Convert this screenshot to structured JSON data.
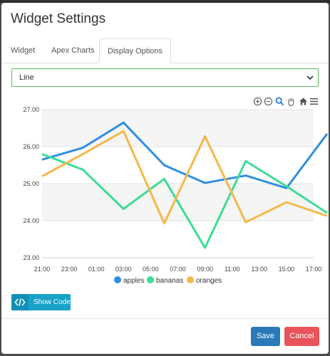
{
  "modal": {
    "title": "Widget Settings",
    "tabs": [
      {
        "label": "Widget",
        "active": false
      },
      {
        "label": "Apex Charts",
        "active": false
      },
      {
        "label": "Display Options",
        "active": true
      }
    ],
    "chart_type_select": {
      "value": "Line"
    },
    "toolbar_icons": [
      "zoom-in-icon",
      "zoom-out-icon",
      "zoom-icon",
      "pan-hand-icon",
      "home-icon",
      "menu-icon"
    ],
    "show_code_label": "Show Code",
    "save_label": "Save",
    "cancel_label": "Cancel"
  },
  "colors": {
    "apples": "#2f8fe0",
    "bananas": "#3ddc97",
    "oranges": "#f5b84a",
    "select_border": "#5cb85c",
    "show_code": "#17a2c8",
    "save": "#2b79b9",
    "cancel": "#e9545a"
  },
  "chart_data": {
    "type": "line",
    "categories": [
      "21:00",
      "23:00",
      "01:00",
      "03:00",
      "05:00",
      "07:00",
      "09:00",
      "11:00",
      "13:00",
      "15:00",
      "17:00"
    ],
    "ylim": [
      23.0,
      27.0
    ],
    "yticks": [
      "27.00",
      "26.00",
      "25.00",
      "24.00",
      "23.00"
    ],
    "grid": true,
    "legend_position": "bottom",
    "series": [
      {
        "name": "apples",
        "x": [
          0,
          1.5,
          3,
          4.5,
          6,
          7.5,
          9,
          10.5
        ],
        "values": [
          25.65,
          25.97,
          26.65,
          25.5,
          25.02,
          25.22,
          24.88,
          26.35
        ]
      },
      {
        "name": "bananas",
        "x": [
          0,
          1.5,
          3,
          4.5,
          6,
          7.5,
          9,
          10.5
        ],
        "values": [
          25.8,
          25.38,
          24.32,
          25.13,
          23.27,
          25.61,
          24.93,
          24.21
        ]
      },
      {
        "name": "oranges",
        "x": [
          0,
          1.5,
          3,
          4.5,
          6,
          7.5,
          9,
          10.5
        ],
        "values": [
          25.2,
          25.8,
          26.42,
          23.93,
          26.28,
          23.96,
          24.5,
          24.13
        ]
      }
    ]
  }
}
